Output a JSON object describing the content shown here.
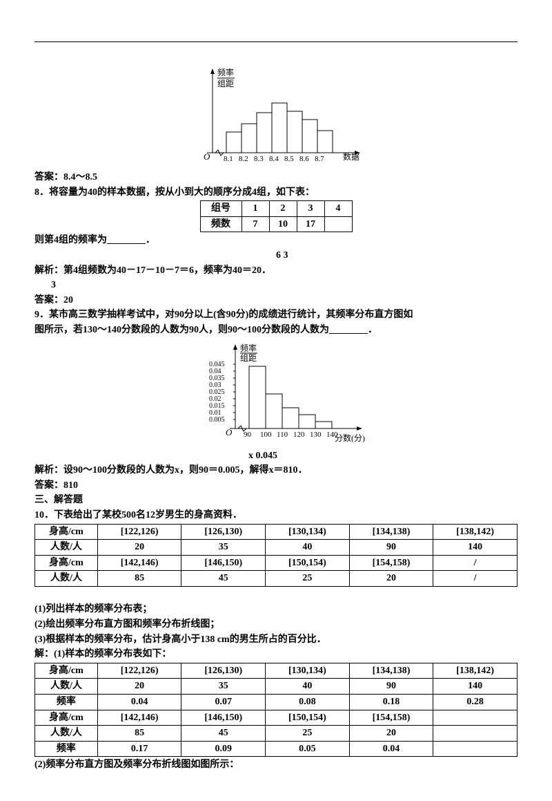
{
  "chart1": {
    "ylabel_top": "频率",
    "ylabel_bot": "组距",
    "origin": "O",
    "xlabels": [
      "8.1",
      "8.2",
      "8.3",
      "8.4",
      "8.5",
      "8.6",
      "8.7"
    ],
    "xlabel": "数据",
    "bars": [
      30,
      42,
      58,
      72,
      60,
      48,
      32
    ],
    "bar_color": "#ffffff",
    "stroke": "#000000"
  },
  "q7": {
    "answer": "答案：8.4～8.5"
  },
  "q8": {
    "stem": "8．将容量为40的样本数据，按从小到大的顺序分成4组，如下表：",
    "table": {
      "headers": [
        "组号",
        "1",
        "2",
        "3",
        "4"
      ],
      "row": [
        "频数",
        "7",
        "10",
        "17",
        ""
      ]
    },
    "blank": "则第4组的频率为________．",
    "frac_top": "6       3",
    "solution": "解析：第4组频数为40－17－10－7＝6，频率为40＝20．",
    "answer_top": "3",
    "answer": "答案：20"
  },
  "q9": {
    "stem1": "9．某市高三数学抽样考试中，对90分以上(含90分)的成绩进行统计，其频率分布直方图如",
    "stem2": "图所示，若130～140分数段的人数为90人，则90～100分数段的人数为________．",
    "chart": {
      "ylabel_top": "频率",
      "ylabel_bot": "组距",
      "origin": "O",
      "ylabels": [
        "0.045",
        "0.04",
        "0.035",
        "0.03",
        "0.025",
        "0.02",
        "0.015",
        "0.01",
        "0.005"
      ],
      "xlabels": [
        "90",
        "100",
        "110",
        "120",
        "130",
        "140"
      ],
      "xlabel": "分数(分)",
      "bars": [
        90,
        50,
        30,
        20,
        10
      ]
    },
    "frac_line": "x      0.045",
    "solution": "解析：设90～100分数段的人数为x，则90＝0.005，解得x＝810．",
    "answer": "答案：810"
  },
  "section3": "三、解答题",
  "q10": {
    "stem": "10．下表给出了某校500名12岁男生的身高资料．",
    "table1": {
      "rows": [
        [
          "身高/cm",
          "[122,126)",
          "[126,130)",
          "[130,134)",
          "[134,138)",
          "[138,142)"
        ],
        [
          "人数/人",
          "20",
          "35",
          "40",
          "90",
          "140"
        ],
        [
          "身高/cm",
          "[142,146)",
          "[146,150)",
          "[150,154)",
          "[154,158)",
          "/"
        ],
        [
          "人数/人",
          "85",
          "45",
          "25",
          "20",
          "/"
        ]
      ]
    },
    "sub1": "(1)列出样本的频率分布表；",
    "sub2": "(2)绘出频率分布直方图和频率分布折线图；",
    "sub3": "(3)根据样本的频率分布，估计身高小于138 cm的男生所占的百分比．",
    "sol_head": "解：(1)样本的频率分布表如下：",
    "table2": {
      "rows": [
        [
          "身高/cm",
          "[122,126)",
          "[126,130)",
          "[130,134)",
          "[134,138)",
          "[138,142)"
        ],
        [
          "人数/人",
          "20",
          "35",
          "40",
          "90",
          "140"
        ],
        [
          "频率",
          "0.04",
          "0.07",
          "0.08",
          "0.18",
          "0.28"
        ],
        [
          "身高/cm",
          "[142,146)",
          "[146,150)",
          "[150,154)",
          "[154,158)",
          ""
        ],
        [
          "人数/人",
          "85",
          "45",
          "25",
          "20",
          ""
        ],
        [
          "频率",
          "0.17",
          "0.09",
          "0.05",
          "0.04",
          ""
        ]
      ]
    },
    "sol2": "(2)频率分布直方图及频率分布折线图如图所示："
  }
}
